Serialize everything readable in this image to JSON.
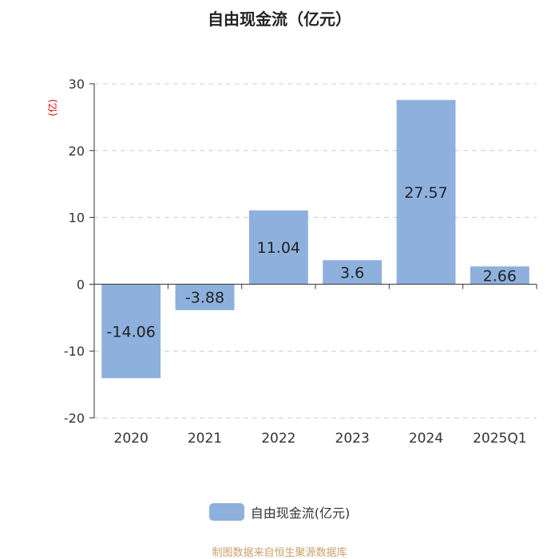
{
  "title": "自由现金流（亿元）",
  "legend_label": "自由现金流(亿元)",
  "source": "制图数据来自恒生聚源数据库",
  "colors": {
    "bar": "#8eb0dd",
    "ylabel": "#dd0000",
    "source": "#c8a06a"
  },
  "chart_data": {
    "type": "bar",
    "categories": [
      "2020",
      "2021",
      "2022",
      "2023",
      "2024",
      "2025Q1"
    ],
    "series": [
      {
        "name": "自由现金流(亿元)",
        "values": [
          -14.06,
          -3.88,
          11.04,
          3.6,
          27.57,
          2.66
        ]
      }
    ],
    "value_labels": [
      "-14.06",
      "-3.88",
      "11.04",
      "3.6",
      "27.57",
      "2.66"
    ],
    "ylabel": "(亿)",
    "ylim": [
      -20,
      30
    ],
    "yticks": [
      30,
      20,
      10,
      0,
      -10,
      -20
    ],
    "grid": true,
    "legend_position": "bottom"
  }
}
